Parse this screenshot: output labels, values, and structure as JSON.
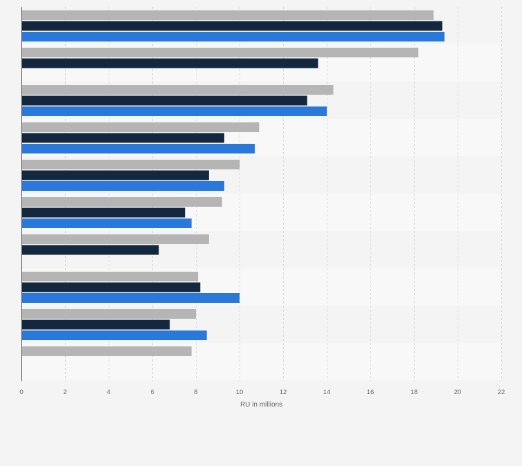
{
  "chart_data": {
    "type": "bar",
    "orientation": "horizontal",
    "xlabel": "RU in millions",
    "xlim": [
      0,
      22
    ],
    "xticks": [
      0,
      2,
      4,
      6,
      8,
      10,
      12,
      14,
      16,
      18,
      20,
      22
    ],
    "grid": true,
    "legend": "none",
    "series": [
      {
        "color": "#b5b5b5",
        "values": [
          18.9,
          18.2,
          14.3,
          10.9,
          10.0,
          9.2,
          8.6,
          8.1,
          8.0,
          7.8
        ]
      },
      {
        "color": "#13283f",
        "values": [
          19.3,
          13.6,
          13.1,
          9.3,
          8.6,
          7.5,
          6.3,
          8.2,
          6.8,
          null
        ]
      },
      {
        "color": "#2a78d9",
        "values": [
          19.4,
          null,
          14.0,
          10.7,
          9.3,
          7.8,
          null,
          10.0,
          8.5,
          null
        ]
      }
    ],
    "row_band_colors": [
      "#f4f4f4",
      "#f8f8f8"
    ],
    "axis_color": "#444444",
    "tick_label_color": "#666666"
  }
}
